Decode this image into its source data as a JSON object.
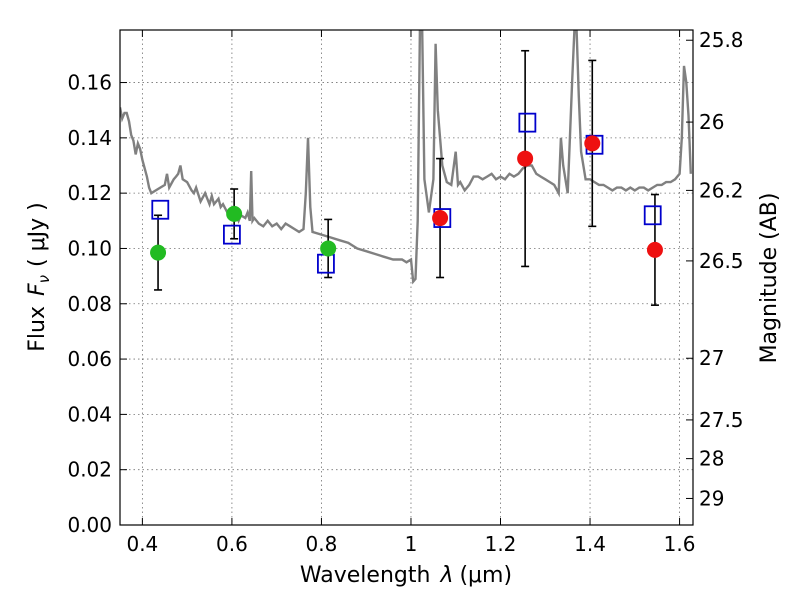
{
  "chart_data": {
    "type": "scatter",
    "title": "",
    "xlabel_prefix": "Wavelength",
    "xlabel_symbol": "λ",
    "xlabel_unit": "(μm)",
    "ylabel_prefix": "Flux",
    "ylabel_symbol": "F",
    "ylabel_subscript": "ν",
    "ylabel_unit": "( μJy )",
    "y2label": "Magnitude (AB)",
    "xlim": [
      0.35,
      1.63
    ],
    "ylim": [
      0.0,
      0.179
    ],
    "x_ticks": [
      0.4,
      0.6,
      0.8,
      1.0,
      1.2,
      1.4,
      1.6
    ],
    "x_tick_labels": [
      "0.4",
      "0.6",
      "0.8",
      "1",
      "1.2",
      "1.4",
      "1.6"
    ],
    "y_ticks": [
      0.0,
      0.02,
      0.04,
      0.06,
      0.08,
      0.1,
      0.12,
      0.14,
      0.16
    ],
    "y_tick_labels": [
      "0.00",
      "0.02",
      "0.04",
      "0.06",
      "0.08",
      "0.10",
      "0.12",
      "0.14",
      "0.16"
    ],
    "y2_ticks": [
      {
        "flux": 0.1753,
        "label": "25.8"
      },
      {
        "flux": 0.1457,
        "label": "26"
      },
      {
        "flux": 0.121,
        "label": "26.2"
      },
      {
        "flux": 0.0955,
        "label": "26.5"
      },
      {
        "flux": 0.0603,
        "label": "27"
      },
      {
        "flux": 0.038,
        "label": "27.5"
      },
      {
        "flux": 0.024,
        "label": "28"
      },
      {
        "flux": 0.0096,
        "label": "29"
      }
    ],
    "grid": true,
    "colors": {
      "model": "#808080",
      "measured_optical": "#22bb22",
      "measured_nir": "#ee1111",
      "synthetic": "#0000cc",
      "errorbar": "#000000"
    },
    "model_spectrum": {
      "name": "model",
      "points": [
        [
          0.35,
          0.151
        ],
        [
          0.355,
          0.147
        ],
        [
          0.36,
          0.149
        ],
        [
          0.365,
          0.149
        ],
        [
          0.37,
          0.146
        ],
        [
          0.375,
          0.141
        ],
        [
          0.38,
          0.139
        ],
        [
          0.385,
          0.134
        ],
        [
          0.39,
          0.138
        ],
        [
          0.395,
          0.136
        ],
        [
          0.4,
          0.132
        ],
        [
          0.41,
          0.126
        ],
        [
          0.415,
          0.122
        ],
        [
          0.42,
          0.12
        ],
        [
          0.43,
          0.121
        ],
        [
          0.44,
          0.122
        ],
        [
          0.45,
          0.123
        ],
        [
          0.455,
          0.127
        ],
        [
          0.46,
          0.122
        ],
        [
          0.47,
          0.125
        ],
        [
          0.475,
          0.126
        ],
        [
          0.48,
          0.127
        ],
        [
          0.485,
          0.13
        ],
        [
          0.49,
          0.125
        ],
        [
          0.5,
          0.124
        ],
        [
          0.51,
          0.121
        ],
        [
          0.515,
          0.12
        ],
        [
          0.52,
          0.122
        ],
        [
          0.53,
          0.117
        ],
        [
          0.54,
          0.12
        ],
        [
          0.55,
          0.116
        ],
        [
          0.555,
          0.119
        ],
        [
          0.56,
          0.116
        ],
        [
          0.57,
          0.118
        ],
        [
          0.575,
          0.115
        ],
        [
          0.58,
          0.116
        ],
        [
          0.59,
          0.113
        ],
        [
          0.6,
          0.114
        ],
        [
          0.61,
          0.112
        ],
        [
          0.615,
          0.11
        ],
        [
          0.62,
          0.112
        ],
        [
          0.63,
          0.111
        ],
        [
          0.635,
          0.113
        ],
        [
          0.64,
          0.11
        ],
        [
          0.643,
          0.128
        ],
        [
          0.646,
          0.11
        ],
        [
          0.65,
          0.111
        ],
        [
          0.66,
          0.109
        ],
        [
          0.67,
          0.108
        ],
        [
          0.68,
          0.11
        ],
        [
          0.69,
          0.108
        ],
        [
          0.7,
          0.109
        ],
        [
          0.71,
          0.107
        ],
        [
          0.72,
          0.109
        ],
        [
          0.73,
          0.108
        ],
        [
          0.74,
          0.107
        ],
        [
          0.75,
          0.106
        ],
        [
          0.76,
          0.107
        ],
        [
          0.765,
          0.12
        ],
        [
          0.77,
          0.14
        ],
        [
          0.775,
          0.115
        ],
        [
          0.78,
          0.106
        ],
        [
          0.8,
          0.105
        ],
        [
          0.82,
          0.104
        ],
        [
          0.84,
          0.103
        ],
        [
          0.86,
          0.102
        ],
        [
          0.88,
          0.1
        ],
        [
          0.9,
          0.099
        ],
        [
          0.92,
          0.098
        ],
        [
          0.94,
          0.097
        ],
        [
          0.96,
          0.096
        ],
        [
          0.98,
          0.096
        ],
        [
          0.99,
          0.095
        ],
        [
          1.0,
          0.096
        ],
        [
          1.005,
          0.088
        ],
        [
          1.01,
          0.089
        ],
        [
          1.015,
          0.11
        ],
        [
          1.02,
          0.179
        ],
        [
          1.025,
          0.179
        ],
        [
          1.03,
          0.125
        ],
        [
          1.04,
          0.113
        ],
        [
          1.05,
          0.125
        ],
        [
          1.055,
          0.174
        ],
        [
          1.06,
          0.15
        ],
        [
          1.07,
          0.13
        ],
        [
          1.08,
          0.124
        ],
        [
          1.09,
          0.123
        ],
        [
          1.1,
          0.135
        ],
        [
          1.105,
          0.123
        ],
        [
          1.11,
          0.124
        ],
        [
          1.12,
          0.121
        ],
        [
          1.13,
          0.123
        ],
        [
          1.14,
          0.126
        ],
        [
          1.15,
          0.126
        ],
        [
          1.16,
          0.125
        ],
        [
          1.17,
          0.126
        ],
        [
          1.18,
          0.127
        ],
        [
          1.19,
          0.125
        ],
        [
          1.2,
          0.126
        ],
        [
          1.21,
          0.125
        ],
        [
          1.22,
          0.127
        ],
        [
          1.23,
          0.126
        ],
        [
          1.24,
          0.127
        ],
        [
          1.25,
          0.129
        ],
        [
          1.26,
          0.13
        ],
        [
          1.27,
          0.13
        ],
        [
          1.28,
          0.127
        ],
        [
          1.29,
          0.126
        ],
        [
          1.3,
          0.125
        ],
        [
          1.31,
          0.124
        ],
        [
          1.32,
          0.123
        ],
        [
          1.33,
          0.12
        ],
        [
          1.335,
          0.14
        ],
        [
          1.34,
          0.13
        ],
        [
          1.35,
          0.12
        ],
        [
          1.36,
          0.16
        ],
        [
          1.365,
          0.179
        ],
        [
          1.37,
          0.179
        ],
        [
          1.375,
          0.155
        ],
        [
          1.38,
          0.135
        ],
        [
          1.39,
          0.125
        ],
        [
          1.4,
          0.125
        ],
        [
          1.41,
          0.124
        ],
        [
          1.42,
          0.123
        ],
        [
          1.43,
          0.123
        ],
        [
          1.44,
          0.122
        ],
        [
          1.45,
          0.121
        ],
        [
          1.46,
          0.122
        ],
        [
          1.47,
          0.122
        ],
        [
          1.48,
          0.121
        ],
        [
          1.49,
          0.122
        ],
        [
          1.5,
          0.121
        ],
        [
          1.51,
          0.122
        ],
        [
          1.52,
          0.122
        ],
        [
          1.53,
          0.121
        ],
        [
          1.54,
          0.122
        ],
        [
          1.55,
          0.123
        ],
        [
          1.56,
          0.123
        ],
        [
          1.57,
          0.124
        ],
        [
          1.58,
          0.124
        ],
        [
          1.59,
          0.125
        ],
        [
          1.6,
          0.127
        ],
        [
          1.605,
          0.14
        ],
        [
          1.61,
          0.166
        ],
        [
          1.615,
          0.16
        ],
        [
          1.62,
          0.148
        ],
        [
          1.625,
          0.127
        ]
      ]
    },
    "measured_points": [
      {
        "x": 0.435,
        "y": 0.0985,
        "err": 0.0135,
        "color": "green"
      },
      {
        "x": 0.605,
        "y": 0.1125,
        "err": 0.009,
        "color": "green"
      },
      {
        "x": 0.815,
        "y": 0.1,
        "err": 0.0105,
        "color": "green"
      },
      {
        "x": 1.065,
        "y": 0.111,
        "err": 0.0215,
        "color": "red"
      },
      {
        "x": 1.255,
        "y": 0.1325,
        "err": 0.039,
        "color": "red"
      },
      {
        "x": 1.405,
        "y": 0.138,
        "err": 0.03,
        "color": "red"
      },
      {
        "x": 1.545,
        "y": 0.0995,
        "err": 0.02,
        "color": "red"
      }
    ],
    "synthetic_points": [
      {
        "x": 0.44,
        "y": 0.114
      },
      {
        "x": 0.6,
        "y": 0.105
      },
      {
        "x": 0.81,
        "y": 0.0945
      },
      {
        "x": 1.07,
        "y": 0.111
      },
      {
        "x": 1.26,
        "y": 0.1455
      },
      {
        "x": 1.41,
        "y": 0.1375
      },
      {
        "x": 1.54,
        "y": 0.112
      }
    ]
  }
}
